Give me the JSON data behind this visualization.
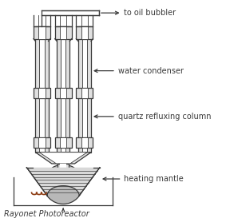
{
  "fig_width": 2.88,
  "fig_height": 2.78,
  "dpi": 100,
  "bg_color": "#ffffff",
  "line_color": "#3a3a3a",
  "gray_fill": "#b8b8b8",
  "light_gray": "#d8d8d8",
  "tube_gray": "#e0e0e0",
  "labels": {
    "oil_bubbler": "to oil bubbler",
    "water_condenser": "water condenser",
    "quartz_column": "quartz refluxing column",
    "heating_mantle": "heating mantle",
    "rayonet": "Rayonet Photoreactor"
  },
  "font_size": 7.0
}
